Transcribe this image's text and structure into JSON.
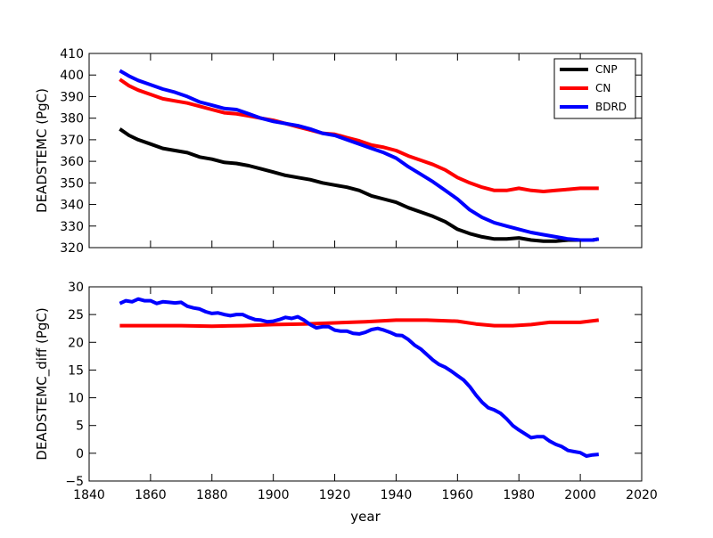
{
  "chart_data": [
    {
      "type": "line",
      "title": "",
      "xlabel": "",
      "ylabel": "DEADSTEMC (PgC)",
      "xlim": [
        1840,
        2020
      ],
      "ylim": [
        320,
        410
      ],
      "xticks": [
        1840,
        1860,
        1880,
        1900,
        1920,
        1940,
        1960,
        1980,
        2000,
        2020
      ],
      "yticks": [
        320,
        330,
        340,
        350,
        360,
        370,
        380,
        390,
        400,
        410
      ],
      "show_xtick_labels": false,
      "legend": "top-right",
      "series": [
        {
          "name": "CNP",
          "color": "#000000",
          "x": [
            1850,
            1853,
            1856,
            1860,
            1864,
            1868,
            1872,
            1876,
            1880,
            1884,
            1888,
            1892,
            1896,
            1900,
            1904,
            1908,
            1912,
            1916,
            1920,
            1924,
            1928,
            1932,
            1936,
            1940,
            1944,
            1948,
            1952,
            1956,
            1960,
            1964,
            1968,
            1972,
            1976,
            1980,
            1984,
            1988,
            1992,
            1996,
            2000,
            2004,
            2006
          ],
          "values": [
            375,
            372,
            370,
            368,
            366,
            365,
            364,
            362,
            361,
            359.5,
            359,
            358,
            356.5,
            355,
            353.5,
            352.5,
            351.5,
            350,
            349,
            348,
            346.5,
            344,
            342.5,
            341,
            338.5,
            336.5,
            334.5,
            332,
            328.5,
            326.5,
            325,
            324,
            324,
            324.5,
            323.5,
            323,
            323,
            323.5,
            323.5,
            323.5,
            324
          ]
        },
        {
          "name": "CN",
          "color": "#ff0000",
          "x": [
            1850,
            1853,
            1856,
            1860,
            1864,
            1868,
            1872,
            1876,
            1880,
            1884,
            1888,
            1892,
            1896,
            1900,
            1904,
            1908,
            1912,
            1916,
            1920,
            1924,
            1928,
            1932,
            1936,
            1940,
            1944,
            1948,
            1952,
            1956,
            1960,
            1964,
            1968,
            1972,
            1976,
            1980,
            1984,
            1988,
            1992,
            1996,
            2000,
            2004,
            2006
          ],
          "values": [
            398,
            395,
            393,
            391,
            389,
            388,
            387,
            385.5,
            384,
            382.5,
            382,
            381,
            380,
            379,
            377.5,
            376,
            374.5,
            373,
            372.5,
            371,
            369.5,
            367.5,
            366.5,
            365,
            362.5,
            360.5,
            358.5,
            356,
            352.5,
            350,
            348,
            346.5,
            346.5,
            347.5,
            346.5,
            346,
            346.5,
            347,
            347.5,
            347.5,
            347.5
          ]
        },
        {
          "name": "BDRD",
          "color": "#0000ff",
          "x": [
            1850,
            1853,
            1856,
            1860,
            1864,
            1868,
            1872,
            1876,
            1880,
            1884,
            1888,
            1892,
            1896,
            1900,
            1904,
            1908,
            1912,
            1916,
            1920,
            1924,
            1928,
            1932,
            1936,
            1940,
            1944,
            1948,
            1952,
            1956,
            1960,
            1964,
            1968,
            1972,
            1976,
            1980,
            1984,
            1988,
            1992,
            1996,
            2000,
            2004,
            2006
          ],
          "values": [
            402,
            399.5,
            397.5,
            395.5,
            393.5,
            392,
            390,
            387.5,
            386,
            384.5,
            384,
            382,
            380,
            378.5,
            377.5,
            376.5,
            375,
            373,
            372,
            370,
            368,
            366,
            364,
            361.5,
            357.5,
            354,
            350.5,
            346.5,
            342.5,
            337.5,
            334,
            331.5,
            330,
            328.5,
            327,
            326,
            325,
            324,
            323.5,
            323.5,
            324
          ]
        }
      ]
    },
    {
      "type": "line",
      "title": "",
      "xlabel": "year",
      "ylabel": "DEADSTEMC_diff (PgC)",
      "xlim": [
        1840,
        2020
      ],
      "ylim": [
        -5,
        30
      ],
      "xticks": [
        1840,
        1860,
        1880,
        1900,
        1920,
        1940,
        1960,
        1980,
        2000,
        2020
      ],
      "yticks": [
        -5,
        0,
        5,
        10,
        15,
        20,
        25,
        30
      ],
      "show_xtick_labels": true,
      "series": [
        {
          "name": "CN",
          "color": "#ff0000",
          "x": [
            1850,
            1860,
            1870,
            1880,
            1890,
            1900,
            1910,
            1920,
            1930,
            1940,
            1950,
            1960,
            1966,
            1972,
            1978,
            1984,
            1990,
            1996,
            2000,
            2006
          ],
          "values": [
            23,
            23,
            23,
            22.9,
            23,
            23.2,
            23.3,
            23.5,
            23.7,
            24,
            24,
            23.8,
            23.3,
            23,
            23,
            23.2,
            23.6,
            23.6,
            23.6,
            24
          ]
        },
        {
          "name": "BDRD",
          "color": "#0000ff",
          "x": [
            1850,
            1852,
            1854,
            1856,
            1858,
            1860,
            1862,
            1864,
            1866,
            1868,
            1870,
            1872,
            1874,
            1876,
            1878,
            1880,
            1882,
            1884,
            1886,
            1888,
            1890,
            1892,
            1894,
            1896,
            1898,
            1900,
            1902,
            1904,
            1906,
            1908,
            1910,
            1912,
            1914,
            1916,
            1918,
            1920,
            1922,
            1924,
            1926,
            1928,
            1930,
            1932,
            1934,
            1936,
            1938,
            1940,
            1942,
            1944,
            1946,
            1948,
            1950,
            1952,
            1954,
            1956,
            1958,
            1960,
            1962,
            1964,
            1966,
            1968,
            1970,
            1972,
            1974,
            1976,
            1978,
            1980,
            1982,
            1984,
            1986,
            1988,
            1990,
            1992,
            1994,
            1996,
            1998,
            2000,
            2002,
            2004,
            2006
          ],
          "values": [
            27,
            27.5,
            27.3,
            27.8,
            27.5,
            27.5,
            27,
            27.3,
            27.2,
            27.1,
            27.2,
            26.5,
            26.2,
            26,
            25.5,
            25.2,
            25.3,
            25,
            24.8,
            25,
            25,
            24.5,
            24.1,
            24,
            23.7,
            23.8,
            24.1,
            24.5,
            24.3,
            24.6,
            24,
            23.2,
            22.6,
            22.8,
            22.8,
            22.2,
            22,
            22,
            21.6,
            21.5,
            21.8,
            22.3,
            22.5,
            22.2,
            21.8,
            21.3,
            21.2,
            20.5,
            19.5,
            18.8,
            17.8,
            16.8,
            16,
            15.5,
            14.8,
            14,
            13.2,
            12,
            10.5,
            9.2,
            8.2,
            7.8,
            7.2,
            6.2,
            5,
            4.2,
            3.5,
            2.8,
            3,
            3,
            2.2,
            1.6,
            1.2,
            0.5,
            0.3,
            0.1,
            -0.5,
            -0.3,
            -0.2
          ]
        }
      ]
    }
  ]
}
